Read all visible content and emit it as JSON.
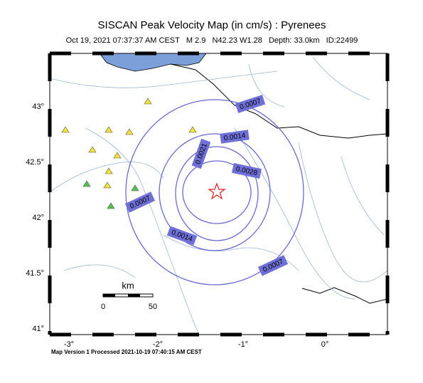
{
  "header": {
    "title": "SISCAN Peak Velocity Map (in cm/s) : Pyrenees",
    "subtitle": "Oct 19, 2021 07:37:37 AM CEST   M 2.9   N42.23 W1.28   Depth: 33.0km   ID:22499"
  },
  "axes": {
    "lat_labels": [
      "43°",
      "42.5°",
      "42°",
      "41.5°",
      "41°"
    ],
    "lon_labels": [
      "-3°",
      "-2°",
      "-1°",
      "0°"
    ]
  },
  "contour_labels": [
    "0.0007",
    "0.0014",
    "0.0021",
    "0.0028",
    "0.0007",
    "0.0014",
    "0.0007"
  ],
  "scale_bar": {
    "unit": "km",
    "start": "0",
    "end": "50"
  },
  "footer": "Map Version 1 Processed 2021-10-19 07:40:15 AM CEST"
}
